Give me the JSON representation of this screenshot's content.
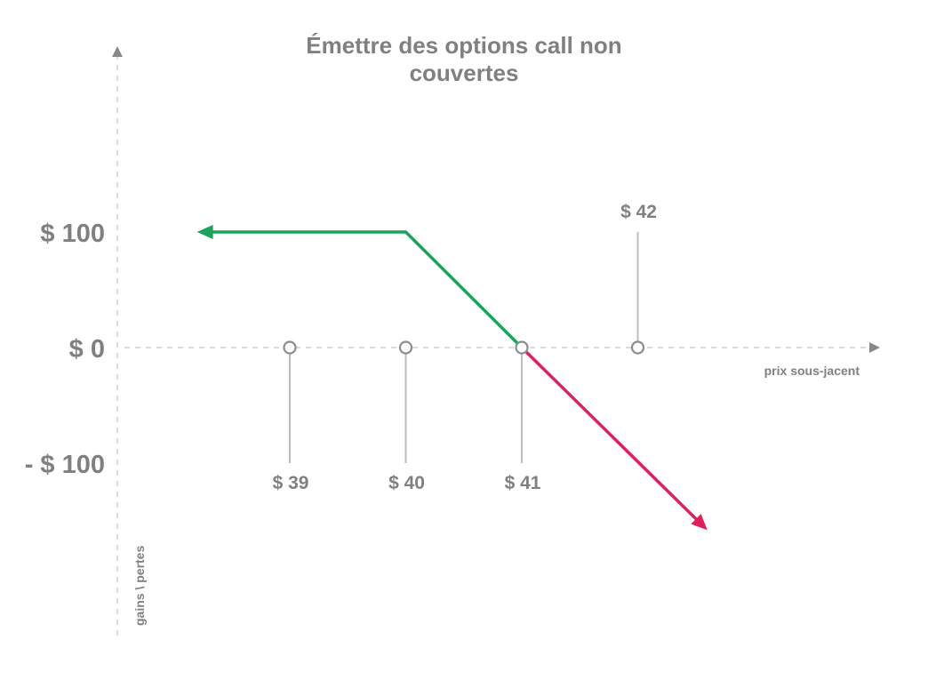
{
  "chart_data": {
    "type": "line",
    "title_lines": [
      "Émettre des options call non",
      "couvertes"
    ],
    "xlabel": "prix sous-jacent",
    "ylabel": "gains \\ pertes",
    "y_ticks": [
      {
        "value": 100,
        "label": "$ 100"
      },
      {
        "value": 0,
        "label": "$ 0"
      },
      {
        "value": -100,
        "label": "- $ 100"
      }
    ],
    "x_ticks": [
      {
        "value": 39,
        "label": "$ 39",
        "label_side": "below"
      },
      {
        "value": 40,
        "label": "$ 40",
        "label_side": "below"
      },
      {
        "value": 41,
        "label": "$ 41",
        "label_side": "below"
      },
      {
        "value": 42,
        "label": "$ 42",
        "label_side": "above"
      }
    ],
    "xlim": [
      37.5,
      42.7
    ],
    "ylim": [
      -250,
      220
    ],
    "series": [
      {
        "color": "#1aa35a",
        "x": [
          38.2,
          40,
          41
        ],
        "y": [
          100,
          100,
          0
        ],
        "arrow_start": true
      },
      {
        "color": "#e0205a",
        "x": [
          41,
          42.6
        ],
        "y": [
          0,
          -158
        ],
        "arrow_end": true
      }
    ],
    "grid": false,
    "axis_color": "#888888"
  }
}
